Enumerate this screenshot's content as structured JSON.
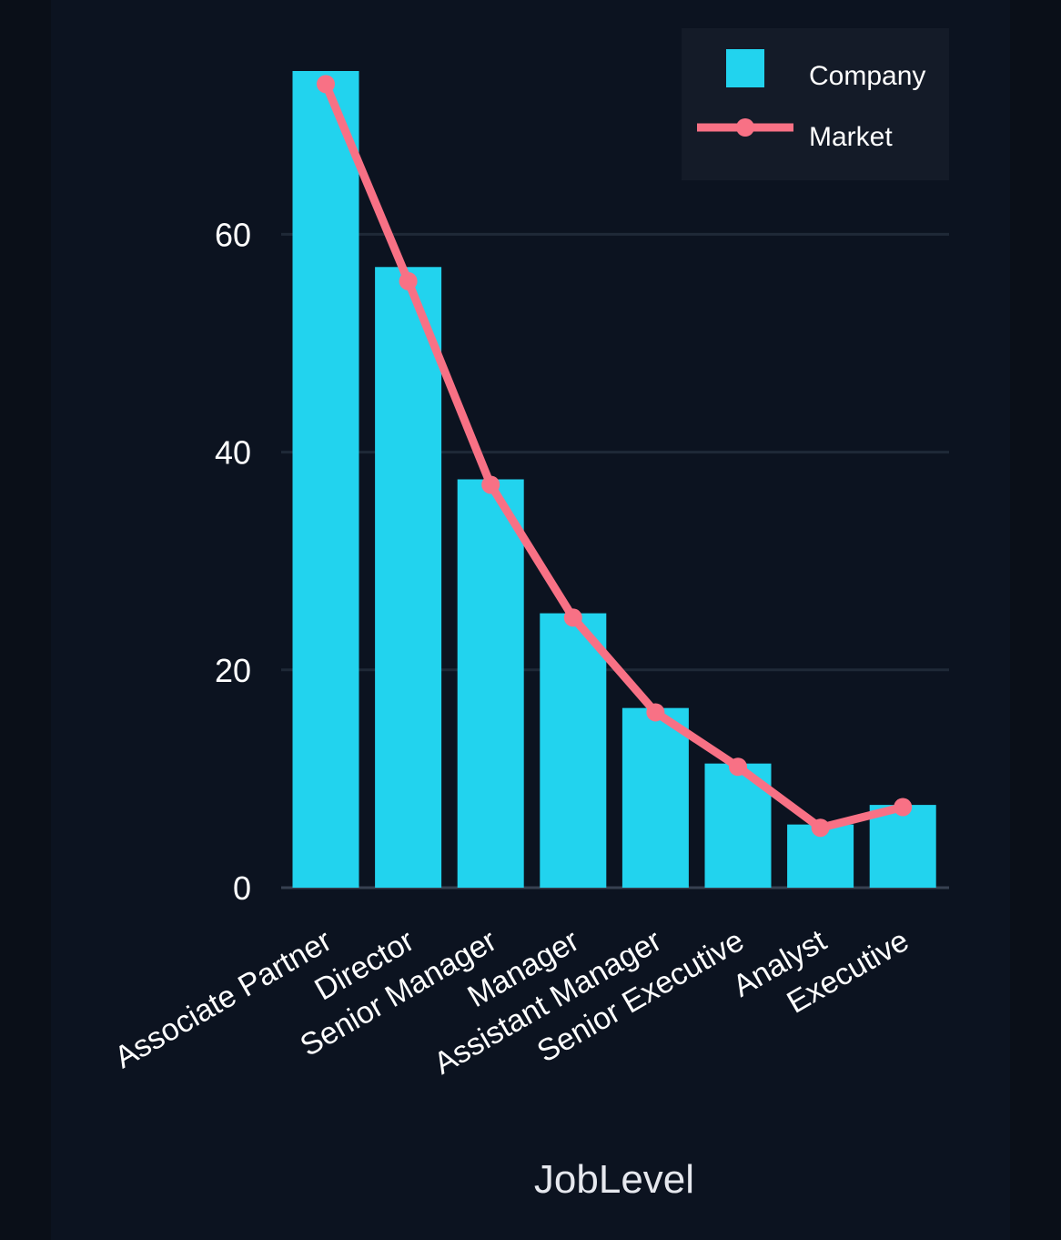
{
  "chart_data": {
    "type": "bar",
    "title": "",
    "xlabel": "JobLevel",
    "ylabel": "",
    "categories": [
      "Associate Partner",
      "Director",
      "Senior Manager",
      "Manager",
      "Assistant Manager",
      "Senior Executive",
      "Analyst",
      "Executive"
    ],
    "series": [
      {
        "name": "Company",
        "type": "bar",
        "values": [
          75,
          57,
          37.5,
          25.2,
          16.5,
          11.4,
          5.8,
          7.6
        ]
      },
      {
        "name": "Market",
        "type": "line",
        "values": [
          73.8,
          55.7,
          37,
          24.8,
          16.1,
          11.1,
          5.5,
          7.4
        ]
      }
    ],
    "ylim": [
      0,
      75
    ],
    "yticks": [
      0,
      20,
      40,
      60
    ],
    "grid": true,
    "legend": "top-right",
    "colors": {
      "Company": "#22d3ee",
      "Market": "#f87185",
      "background": "#0c1320",
      "grid": "#1f2937",
      "axis": "#374151",
      "legend_bg": "#141b28"
    }
  }
}
